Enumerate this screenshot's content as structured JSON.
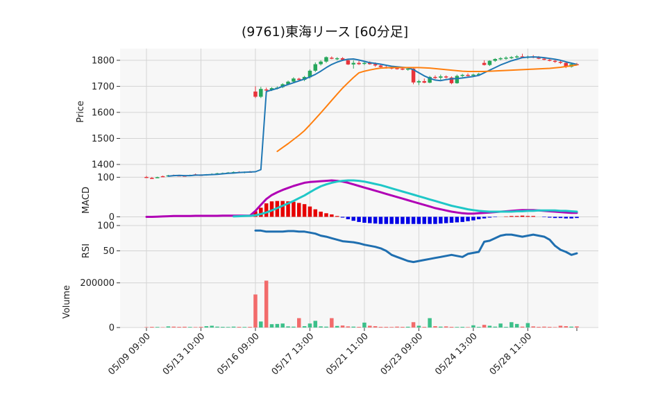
{
  "chart_data": {
    "type": "candlestick",
    "title": "(9761)東海リース  [60分足]",
    "colors": {
      "up": "#26a65b",
      "down": "#e8343b",
      "ma_short": "#1f77b4",
      "ma_long": "#ff7f0e",
      "macd": "#b000b5",
      "signal": "#1fc7c7",
      "hist_pos": "#e60000",
      "hist_neg": "#0000e6",
      "rsi": "#1f6fb0",
      "vol_up": "#3cc08a",
      "vol_down": "#f26b6b",
      "panel_bg": "#f7f7f7",
      "grid": "#d4d4d4"
    },
    "x_tick_labels": [
      "05/09 09:00",
      "05/13 10:00",
      "05/16 09:00",
      "05/17 13:00",
      "05/21 11:00",
      "05/23 09:00",
      "05/24 13:00",
      "05/28 11:00"
    ],
    "x_tick_index": [
      0,
      10,
      20,
      30,
      40,
      50,
      60,
      70
    ],
    "price": {
      "ylabel": "Price",
      "ylim": [
        1360,
        1845
      ],
      "ticks": [
        1400,
        1500,
        1600,
        1700,
        1800
      ],
      "ohlc": [
        [
          1352,
          1356,
          1350,
          1348
        ],
        [
          1348,
          1352,
          1346,
          1347
        ],
        [
          1350,
          1353,
          1348,
          1351
        ],
        [
          1355,
          1357,
          1353,
          1354
        ],
        [
          1356,
          1360,
          1354,
          1358
        ],
        [
          1359,
          1361,
          1356,
          1357
        ],
        [
          1358,
          1360,
          1355,
          1356
        ],
        [
          1357,
          1359,
          1354,
          1355
        ],
        [
          1358,
          1361,
          1356,
          1359
        ],
        [
          1362,
          1365,
          1359,
          1361
        ],
        [
          1360,
          1362,
          1356,
          1357
        ],
        [
          1359,
          1363,
          1357,
          1362
        ],
        [
          1362,
          1366,
          1360,
          1363
        ],
        [
          1365,
          1368,
          1363,
          1366
        ],
        [
          1366,
          1369,
          1364,
          1367
        ],
        [
          1368,
          1371,
          1366,
          1369
        ],
        [
          1370,
          1373,
          1367,
          1371
        ],
        [
          1371,
          1374,
          1368,
          1370
        ],
        [
          1370,
          1373,
          1366,
          1372
        ],
        [
          1372,
          1375,
          1369,
          1371
        ],
        [
          1680,
          1700,
          1655,
          1660
        ],
        [
          1660,
          1698,
          1655,
          1690
        ],
        [
          1688,
          1695,
          1680,
          1685
        ],
        [
          1685,
          1697,
          1682,
          1693
        ],
        [
          1692,
          1700,
          1688,
          1695
        ],
        [
          1697,
          1712,
          1693,
          1708
        ],
        [
          1708,
          1722,
          1705,
          1718
        ],
        [
          1718,
          1735,
          1715,
          1730
        ],
        [
          1729,
          1733,
          1722,
          1725
        ],
        [
          1725,
          1740,
          1720,
          1736
        ],
        [
          1735,
          1765,
          1730,
          1760
        ],
        [
          1760,
          1792,
          1755,
          1785
        ],
        [
          1785,
          1800,
          1780,
          1795
        ],
        [
          1795,
          1815,
          1790,
          1812
        ],
        [
          1810,
          1815,
          1804,
          1806
        ],
        [
          1806,
          1812,
          1800,
          1808
        ],
        [
          1808,
          1812,
          1798,
          1802
        ],
        [
          1800,
          1805,
          1782,
          1784
        ],
        [
          1784,
          1800,
          1768,
          1790
        ],
        [
          1790,
          1798,
          1782,
          1785
        ],
        [
          1788,
          1795,
          1782,
          1790
        ],
        [
          1790,
          1796,
          1783,
          1785
        ],
        [
          1785,
          1792,
          1775,
          1780
        ],
        [
          1780,
          1786,
          1770,
          1774
        ],
        [
          1774,
          1780,
          1768,
          1772
        ],
        [
          1772,
          1778,
          1765,
          1770
        ],
        [
          1770,
          1776,
          1764,
          1768
        ],
        [
          1768,
          1774,
          1762,
          1766
        ],
        [
          1766,
          1772,
          1760,
          1768
        ],
        [
          1768,
          1770,
          1708,
          1715
        ],
        [
          1715,
          1725,
          1705,
          1720
        ],
        [
          1720,
          1730,
          1712,
          1714
        ],
        [
          1714,
          1740,
          1712,
          1736
        ],
        [
          1736,
          1742,
          1728,
          1733
        ],
        [
          1733,
          1745,
          1725,
          1738
        ],
        [
          1738,
          1742,
          1730,
          1734
        ],
        [
          1734,
          1738,
          1708,
          1712
        ],
        [
          1712,
          1745,
          1710,
          1740
        ],
        [
          1740,
          1748,
          1735,
          1744
        ],
        [
          1744,
          1750,
          1738,
          1742
        ],
        [
          1742,
          1748,
          1736,
          1745
        ],
        [
          1745,
          1752,
          1740,
          1748
        ],
        [
          1790,
          1800,
          1780,
          1782
        ],
        [
          1782,
          1800,
          1778,
          1798
        ],
        [
          1798,
          1808,
          1794,
          1805
        ],
        [
          1805,
          1812,
          1800,
          1808
        ],
        [
          1808,
          1815,
          1802,
          1810
        ],
        [
          1810,
          1816,
          1805,
          1812
        ],
        [
          1812,
          1820,
          1808,
          1815
        ],
        [
          1815,
          1825,
          1810,
          1812
        ],
        [
          1812,
          1818,
          1806,
          1814
        ],
        [
          1814,
          1820,
          1808,
          1810
        ],
        [
          1810,
          1816,
          1804,
          1806
        ],
        [
          1806,
          1812,
          1800,
          1802
        ],
        [
          1802,
          1808,
          1796,
          1798
        ],
        [
          1798,
          1802,
          1790,
          1794
        ],
        [
          1794,
          1798,
          1786,
          1790
        ],
        [
          1790,
          1794,
          1770,
          1775
        ],
        [
          1775,
          1788,
          1772,
          1785
        ],
        [
          1785,
          1790,
          1780,
          1783
        ]
      ],
      "ma_short": [
        null,
        null,
        null,
        null,
        1355,
        1357,
        1358,
        1357,
        1357,
        1359,
        1359,
        1360,
        1361,
        1362,
        1364,
        1366,
        1367,
        1369,
        1370,
        1371,
        1372,
        1380,
        1680,
        1686,
        1692,
        1700,
        1707,
        1714,
        1721,
        1728,
        1736,
        1746,
        1758,
        1772,
        1784,
        1793,
        1800,
        1804,
        1805,
        1801,
        1796,
        1791,
        1788,
        1785,
        1781,
        1777,
        1775,
        1773,
        1771,
        1764,
        1752,
        1740,
        1731,
        1724,
        1722,
        1726,
        1729,
        1730,
        1732,
        1735,
        1738,
        1742,
        1752,
        1762,
        1772,
        1782,
        1790,
        1798,
        1804,
        1810,
        1812,
        1813,
        1812,
        1810,
        1807,
        1804,
        1800,
        1794,
        1789,
        1784
      ],
      "ma_long": [
        null,
        null,
        null,
        null,
        null,
        null,
        null,
        null,
        null,
        null,
        null,
        null,
        null,
        null,
        null,
        null,
        null,
        null,
        null,
        null,
        null,
        null,
        null,
        null,
        1450,
        1465,
        1480,
        1496,
        1512,
        1530,
        1552,
        1575,
        1598,
        1622,
        1646,
        1670,
        1693,
        1714,
        1734,
        1752,
        1758,
        1763,
        1767,
        1770,
        1771,
        1772,
        1772,
        1772,
        1772,
        1772,
        1772,
        1771,
        1770,
        1768,
        1766,
        1764,
        1762,
        1760,
        1758,
        1757,
        1757,
        1757,
        1757,
        1758,
        1759,
        1760,
        1761,
        1762,
        1763,
        1764,
        1765,
        1766,
        1767,
        1768,
        1769,
        1771,
        1773,
        1776,
        1779,
        1782
      ]
    },
    "macd": {
      "ylabel": "MACD",
      "ylim": [
        -22,
        106
      ],
      "ticks": [
        0,
        100
      ],
      "macd": [
        0,
        0,
        0.5,
        1,
        1.5,
        2,
        2,
        2,
        2,
        2.5,
        2.5,
        2.5,
        2.5,
        2.5,
        3,
        3,
        3,
        3,
        3,
        3,
        15,
        30,
        45,
        55,
        62,
        68,
        73,
        78,
        82,
        86,
        88,
        89,
        90,
        91,
        92,
        91,
        89,
        86,
        82,
        78,
        74,
        70,
        66,
        62,
        58,
        54,
        50,
        46,
        42,
        38,
        34,
        30,
        26,
        22,
        19,
        16,
        13,
        11,
        9,
        8,
        8,
        9,
        10,
        11,
        12,
        13,
        14,
        15,
        16,
        17,
        17,
        17,
        16,
        15,
        14,
        13,
        12,
        11,
        10,
        10
      ],
      "signal": [
        null,
        null,
        null,
        null,
        null,
        null,
        null,
        null,
        null,
        null,
        null,
        null,
        null,
        null,
        null,
        null,
        1,
        1.5,
        2,
        2.5,
        4,
        7,
        11,
        16,
        22,
        28,
        34,
        40,
        47,
        54,
        62,
        70,
        77,
        82,
        86,
        89,
        91,
        92,
        92,
        91,
        89,
        86,
        83,
        80,
        76,
        72,
        68,
        64,
        60,
        56,
        52,
        48,
        44,
        40,
        36,
        32,
        28,
        25,
        22,
        19,
        17,
        15,
        14,
        13,
        13,
        13,
        13,
        13,
        14,
        14,
        15,
        15,
        16,
        16,
        16,
        16,
        15,
        15,
        14,
        13
      ],
      "hist": [
        0,
        0,
        0,
        0,
        0,
        0,
        0,
        0,
        0,
        0,
        0,
        0,
        0,
        0,
        0,
        0,
        0,
        0,
        0,
        0,
        14,
        23,
        34,
        39,
        40,
        40,
        39,
        38,
        35,
        32,
        26,
        19,
        13,
        9,
        6,
        2,
        -2,
        -6,
        -10,
        -13,
        -15,
        -16,
        -17,
        -18,
        -18,
        -18,
        -18,
        -18,
        -18,
        -18,
        -18,
        -18,
        -18,
        -18,
        -17,
        -16,
        -15,
        -14,
        -13,
        -11,
        -9,
        -6,
        -4,
        -2,
        -1,
        0,
        1,
        2,
        2,
        3,
        2,
        2,
        0,
        -1,
        -2,
        -3,
        -3,
        -4,
        -4,
        -3
      ]
    },
    "rsi": {
      "ylabel": "RSI",
      "ylim": [
        0,
        100
      ],
      "ticks": [
        50,
        100
      ],
      "values": [
        null,
        null,
        null,
        null,
        null,
        null,
        null,
        null,
        null,
        null,
        null,
        null,
        null,
        null,
        null,
        null,
        null,
        null,
        null,
        null,
        90,
        90,
        88,
        88,
        88,
        88,
        89,
        89,
        88,
        88,
        86,
        84,
        80,
        78,
        75,
        72,
        69,
        68,
        67,
        65,
        62,
        60,
        58,
        55,
        50,
        42,
        38,
        34,
        30,
        28,
        30,
        32,
        34,
        36,
        38,
        40,
        42,
        40,
        38,
        44,
        46,
        48,
        68,
        70,
        75,
        80,
        82,
        82,
        80,
        78,
        80,
        82,
        80,
        78,
        72,
        60,
        52,
        48,
        42,
        45
      ]
    },
    "volume": {
      "ylabel": "Volume",
      "ylim": [
        0,
        230000
      ],
      "ticks": [
        0,
        200000
      ],
      "values": [
        2000,
        3000,
        2500,
        1500,
        5000,
        4000,
        3000,
        3500,
        2500,
        2000,
        3000,
        6000,
        8000,
        4000,
        3000,
        2500,
        4000,
        3000,
        2500,
        3000,
        148000,
        27000,
        210000,
        15000,
        16000,
        18000,
        5000,
        4000,
        42000,
        6000,
        18000,
        30000,
        5000,
        4000,
        42000,
        7000,
        9000,
        5000,
        4000,
        3000,
        22000,
        8000,
        6000,
        3000,
        3000,
        2500,
        4000,
        3000,
        3500,
        24000,
        8000,
        3000,
        42000,
        6000,
        4000,
        5000,
        3000,
        2500,
        3000,
        2000,
        10000,
        3000,
        12000,
        8000,
        4000,
        18000,
        3000,
        24000,
        16000,
        4000,
        20000,
        5000,
        3000,
        4000,
        3000,
        2000,
        8000,
        6000,
        4000,
        5000
      ]
    }
  }
}
